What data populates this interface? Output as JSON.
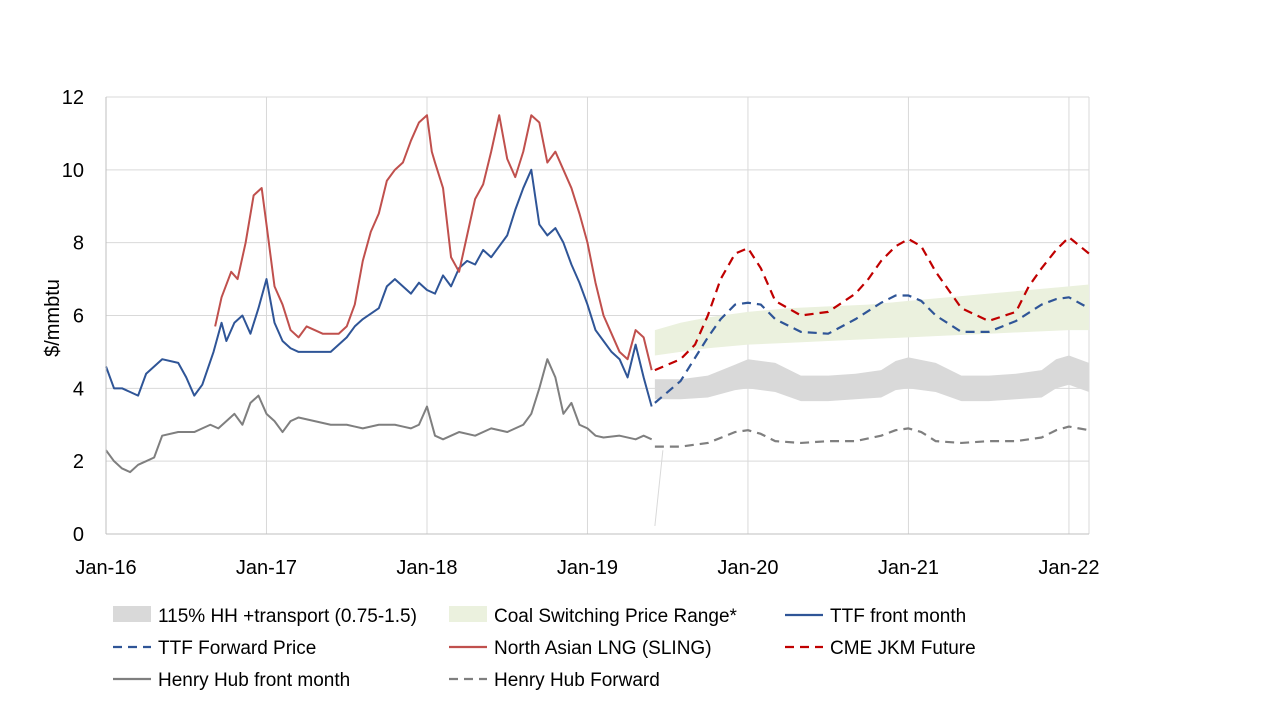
{
  "chart_data": {
    "type": "line",
    "title": "",
    "xlabel": "",
    "ylabel": "$/mmbtu",
    "ylim": [
      0,
      12
    ],
    "xlim": [
      2016.0,
      2022.125
    ],
    "grid": true,
    "legend_position": "bottom",
    "y_ticks": [
      "0",
      "2",
      "4",
      "6",
      "8",
      "10",
      "12"
    ],
    "x_ticks": [
      {
        "label": "Jan-16",
        "x": 2016.0
      },
      {
        "label": "Jan-17",
        "x": 2017.0
      },
      {
        "label": "Jan-18",
        "x": 2018.0
      },
      {
        "label": "Jan-19",
        "x": 2019.0
      },
      {
        "label": "Jan-20",
        "x": 2020.0
      },
      {
        "label": "Jan-21",
        "x": 2021.0
      },
      {
        "label": "Jan-22",
        "x": 2022.0
      }
    ],
    "bands": [
      {
        "name": "115% HH +transport (0.75-1.5)",
        "color": "#d9d9d9",
        "x": [
          2019.42,
          2019.58,
          2019.75,
          2019.92,
          2020.0,
          2020.17,
          2020.33,
          2020.5,
          2020.67,
          2020.83,
          2020.92,
          2021.0,
          2021.17,
          2021.33,
          2021.5,
          2021.67,
          2021.83,
          2021.92,
          2022.0,
          2022.125
        ],
        "lower": [
          3.7,
          3.7,
          3.75,
          3.95,
          4.0,
          3.9,
          3.65,
          3.65,
          3.7,
          3.75,
          3.95,
          4.0,
          3.9,
          3.65,
          3.65,
          3.7,
          3.75,
          4.0,
          4.1,
          3.9
        ],
        "upper": [
          4.25,
          4.25,
          4.35,
          4.65,
          4.8,
          4.7,
          4.35,
          4.35,
          4.4,
          4.5,
          4.75,
          4.85,
          4.7,
          4.35,
          4.35,
          4.4,
          4.5,
          4.8,
          4.9,
          4.7
        ]
      },
      {
        "name": "Coal Switching Price Range*",
        "color": "#ebf1de",
        "x": [
          2019.42,
          2019.58,
          2019.75,
          2020.0,
          2020.25,
          2020.5,
          2020.75,
          2021.0,
          2021.25,
          2021.5,
          2021.75,
          2022.0,
          2022.125
        ],
        "lower": [
          4.9,
          5.0,
          5.1,
          5.2,
          5.25,
          5.3,
          5.35,
          5.4,
          5.45,
          5.5,
          5.55,
          5.6,
          5.6
        ],
        "upper": [
          5.6,
          5.8,
          5.95,
          6.1,
          6.2,
          6.25,
          6.3,
          6.4,
          6.5,
          6.6,
          6.7,
          6.8,
          6.85
        ]
      }
    ],
    "series": [
      {
        "name": "TTF front month",
        "color": "#2f5597",
        "dash": "solid",
        "x": [
          2016.0,
          2016.05,
          2016.1,
          2016.2,
          2016.25,
          2016.3,
          2016.35,
          2016.45,
          2016.5,
          2016.55,
          2016.6,
          2016.67,
          2016.72,
          2016.75,
          2016.8,
          2016.85,
          2016.9,
          2016.95,
          2017.0,
          2017.05,
          2017.1,
          2017.15,
          2017.2,
          2017.3,
          2017.4,
          2017.5,
          2017.55,
          2017.6,
          2017.7,
          2017.75,
          2017.8,
          2017.9,
          2017.95,
          2018.0,
          2018.05,
          2018.1,
          2018.15,
          2018.2,
          2018.25,
          2018.3,
          2018.35,
          2018.4,
          2018.45,
          2018.5,
          2018.55,
          2018.6,
          2018.65,
          2018.7,
          2018.75,
          2018.8,
          2018.85,
          2018.9,
          2018.95,
          2019.0,
          2019.05,
          2019.1,
          2019.15,
          2019.2,
          2019.25,
          2019.3,
          2019.35,
          2019.4
        ],
        "y": [
          4.6,
          4.0,
          4.0,
          3.8,
          4.4,
          4.6,
          4.8,
          4.7,
          4.3,
          3.8,
          4.1,
          5.0,
          5.8,
          5.3,
          5.8,
          6.0,
          5.5,
          6.2,
          7.0,
          5.8,
          5.3,
          5.1,
          5.0,
          5.0,
          5.0,
          5.4,
          5.7,
          5.9,
          6.2,
          6.8,
          7.0,
          6.6,
          6.9,
          6.7,
          6.6,
          7.1,
          6.8,
          7.3,
          7.5,
          7.4,
          7.8,
          7.6,
          7.9,
          8.2,
          8.9,
          9.5,
          10.0,
          8.5,
          8.2,
          8.4,
          8.0,
          7.4,
          6.9,
          6.3,
          5.6,
          5.3,
          5.0,
          4.8,
          4.3,
          5.2,
          4.3,
          3.5
        ]
      },
      {
        "name": "TTF Forward Price",
        "color": "#2f5597",
        "dash": "dash",
        "x": [
          2019.42,
          2019.58,
          2019.75,
          2019.83,
          2019.92,
          2020.0,
          2020.08,
          2020.17,
          2020.33,
          2020.5,
          2020.67,
          2020.83,
          2020.92,
          2021.0,
          2021.08,
          2021.17,
          2021.33,
          2021.5,
          2021.67,
          2021.83,
          2021.92,
          2022.0,
          2022.125
        ],
        "y": [
          3.6,
          4.2,
          5.4,
          5.9,
          6.3,
          6.35,
          6.3,
          5.9,
          5.55,
          5.5,
          5.9,
          6.35,
          6.55,
          6.55,
          6.4,
          6.0,
          5.55,
          5.55,
          5.85,
          6.3,
          6.45,
          6.5,
          6.2
        ]
      },
      {
        "name": "North Asian LNG (SLING)",
        "color": "#c0504d",
        "dash": "solid",
        "x": [
          2016.68,
          2016.72,
          2016.78,
          2016.82,
          2016.87,
          2016.92,
          2016.97,
          2017.0,
          2017.05,
          2017.1,
          2017.15,
          2017.2,
          2017.25,
          2017.3,
          2017.35,
          2017.45,
          2017.5,
          2017.55,
          2017.6,
          2017.65,
          2017.7,
          2017.75,
          2017.8,
          2017.85,
          2017.9,
          2017.95,
          2018.0,
          2018.03,
          2018.05,
          2018.1,
          2018.15,
          2018.2,
          2018.25,
          2018.3,
          2018.35,
          2018.4,
          2018.45,
          2018.5,
          2018.55,
          2018.6,
          2018.65,
          2018.7,
          2018.75,
          2018.8,
          2018.85,
          2018.9,
          2018.95,
          2019.0,
          2019.05,
          2019.1,
          2019.15,
          2019.2,
          2019.25,
          2019.3,
          2019.35,
          2019.4
        ],
        "y": [
          5.7,
          6.5,
          7.2,
          7.0,
          8.0,
          9.3,
          9.5,
          8.5,
          6.8,
          6.3,
          5.6,
          5.4,
          5.7,
          5.6,
          5.5,
          5.5,
          5.7,
          6.3,
          7.5,
          8.3,
          8.8,
          9.7,
          10.0,
          10.2,
          10.8,
          11.3,
          11.5,
          10.5,
          10.2,
          9.5,
          7.6,
          7.2,
          8.2,
          9.2,
          9.6,
          10.5,
          11.5,
          10.3,
          9.8,
          10.5,
          11.5,
          11.3,
          10.2,
          10.5,
          10.0,
          9.5,
          8.8,
          8.0,
          6.9,
          6.0,
          5.5,
          5.0,
          4.8,
          5.6,
          5.4,
          4.5
        ]
      },
      {
        "name": "CME JKM Future",
        "color": "#c00000",
        "dash": "dash",
        "x": [
          2019.42,
          2019.58,
          2019.67,
          2019.75,
          2019.83,
          2019.92,
          2020.0,
          2020.08,
          2020.17,
          2020.33,
          2020.5,
          2020.67,
          2020.75,
          2020.83,
          2020.92,
          2021.0,
          2021.08,
          2021.17,
          2021.33,
          2021.5,
          2021.67,
          2021.75,
          2021.83,
          2021.92,
          2022.0,
          2022.125
        ],
        "y": [
          4.5,
          4.8,
          5.2,
          6.0,
          7.0,
          7.7,
          7.85,
          7.3,
          6.4,
          6.0,
          6.1,
          6.6,
          7.0,
          7.5,
          7.9,
          8.1,
          7.9,
          7.2,
          6.2,
          5.85,
          6.1,
          6.8,
          7.3,
          7.8,
          8.15,
          7.7
        ]
      },
      {
        "name": "Henry Hub front month",
        "color": "#7f7f7f",
        "dash": "solid",
        "x": [
          2016.0,
          2016.05,
          2016.1,
          2016.15,
          2016.2,
          2016.25,
          2016.3,
          2016.35,
          2016.45,
          2016.55,
          2016.6,
          2016.65,
          2016.7,
          2016.75,
          2016.8,
          2016.85,
          2016.9,
          2016.95,
          2017.0,
          2017.05,
          2017.1,
          2017.15,
          2017.2,
          2017.3,
          2017.4,
          2017.5,
          2017.55,
          2017.6,
          2017.7,
          2017.8,
          2017.85,
          2017.9,
          2017.95,
          2018.0,
          2018.05,
          2018.1,
          2018.2,
          2018.3,
          2018.4,
          2018.5,
          2018.55,
          2018.6,
          2018.65,
          2018.7,
          2018.75,
          2018.8,
          2018.85,
          2018.9,
          2018.95,
          2019.0,
          2019.05,
          2019.1,
          2019.2,
          2019.3,
          2019.35,
          2019.4
        ],
        "y": [
          2.3,
          2.0,
          1.8,
          1.7,
          1.9,
          2.0,
          2.1,
          2.7,
          2.8,
          2.8,
          2.9,
          3.0,
          2.9,
          3.1,
          3.3,
          3.0,
          3.6,
          3.8,
          3.3,
          3.1,
          2.8,
          3.1,
          3.2,
          3.1,
          3.0,
          3.0,
          2.95,
          2.9,
          3.0,
          3.0,
          2.95,
          2.9,
          3.0,
          3.5,
          2.7,
          2.6,
          2.8,
          2.7,
          2.9,
          2.8,
          2.9,
          3.0,
          3.3,
          4.0,
          4.8,
          4.3,
          3.3,
          3.6,
          3.0,
          2.9,
          2.7,
          2.65,
          2.7,
          2.6,
          2.7,
          2.6
        ]
      },
      {
        "name": "Henry Hub Forward",
        "color": "#7f7f7f",
        "dash": "dash",
        "x": [
          2019.42,
          2019.58,
          2019.75,
          2019.92,
          2020.0,
          2020.08,
          2020.17,
          2020.33,
          2020.5,
          2020.67,
          2020.83,
          2020.92,
          2021.0,
          2021.08,
          2021.17,
          2021.33,
          2021.5,
          2021.67,
          2021.83,
          2021.92,
          2022.0,
          2022.125
        ],
        "y": [
          2.4,
          2.4,
          2.5,
          2.8,
          2.85,
          2.75,
          2.55,
          2.5,
          2.55,
          2.55,
          2.7,
          2.85,
          2.9,
          2.8,
          2.55,
          2.5,
          2.55,
          2.55,
          2.65,
          2.85,
          2.95,
          2.85
        ]
      }
    ],
    "legend": [
      {
        "label": "115% HH +transport (0.75-1.5)",
        "kind": "band",
        "color": "#d9d9d9",
        "dash": "solid"
      },
      {
        "label": "Coal Switching Price Range*",
        "kind": "band",
        "color": "#ebf1de",
        "dash": "solid"
      },
      {
        "label": "TTF front month",
        "kind": "line",
        "color": "#2f5597",
        "dash": "solid"
      },
      {
        "label": "TTF Forward Price",
        "kind": "line",
        "color": "#2f5597",
        "dash": "dash"
      },
      {
        "label": "North Asian LNG (SLING)",
        "kind": "line",
        "color": "#c0504d",
        "dash": "solid"
      },
      {
        "label": "CME JKM Future",
        "kind": "line",
        "color": "#c00000",
        "dash": "dash"
      },
      {
        "label": "Henry Hub front month",
        "kind": "line",
        "color": "#7f7f7f",
        "dash": "solid"
      },
      {
        "label": "Henry Hub Forward",
        "kind": "line",
        "color": "#7f7f7f",
        "dash": "dash"
      }
    ]
  }
}
